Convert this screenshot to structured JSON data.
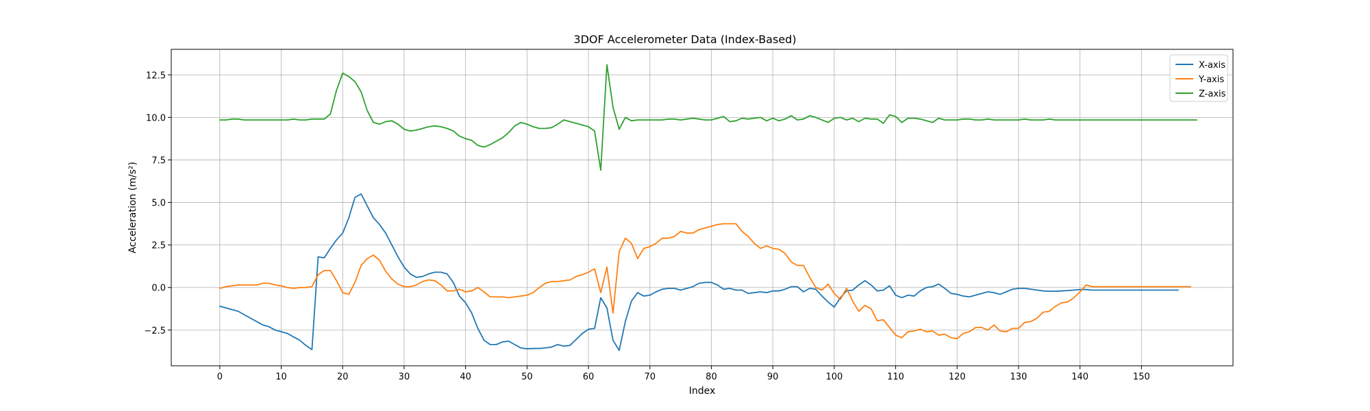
{
  "chart_data": {
    "type": "line",
    "title": "3DOF Accelerometer Data (Index-Based)",
    "xlabel": "Index",
    "ylabel": "Acceleration (m/s²)",
    "xlim": [
      -7.9,
      164.9
    ],
    "ylim": [
      -4.6,
      14.0
    ],
    "xticks": [
      0,
      10,
      20,
      30,
      40,
      50,
      60,
      70,
      80,
      90,
      100,
      110,
      120,
      130,
      140,
      150
    ],
    "yticks": [
      -2.5,
      0.0,
      2.5,
      5.0,
      7.5,
      10.0,
      12.5
    ],
    "ytick_labels": [
      "−2.5",
      "0.0",
      "2.5",
      "5.0",
      "7.5",
      "10.0",
      "12.5"
    ],
    "grid": true,
    "legend_position": "top-right",
    "series": [
      {
        "name": "X-axis",
        "color": "#1f77b4",
        "values": [
          -1.1,
          -1.2,
          -1.3,
          -1.4,
          -1.6,
          -1.8,
          -2.0,
          -2.2,
          -2.3,
          -2.5,
          -2.6,
          -2.7,
          -2.9,
          -3.1,
          -3.4,
          -3.65,
          1.8,
          1.75,
          2.3,
          2.8,
          3.2,
          4.1,
          5.3,
          5.5,
          4.8,
          4.1,
          3.7,
          3.2,
          2.5,
          1.8,
          1.2,
          0.8,
          0.6,
          0.65,
          0.8,
          0.9,
          0.9,
          0.8,
          0.3,
          -0.5,
          -0.9,
          -1.5,
          -2.4,
          -3.1,
          -3.35,
          -3.35,
          -3.2,
          -3.15,
          -3.35,
          -3.55,
          -3.6,
          -3.58,
          -3.58,
          -3.55,
          -3.5,
          -3.35,
          -3.45,
          -3.4,
          -3.05,
          -2.7,
          -2.45,
          -2.4,
          -0.6,
          -1.2,
          -3.1,
          -3.7,
          -2.0,
          -0.8,
          -0.3,
          -0.5,
          -0.45,
          -0.25,
          -0.1,
          -0.05,
          -0.05,
          -0.15,
          -0.05,
          0.05,
          0.25,
          0.3,
          0.3,
          0.15,
          -0.1,
          -0.05,
          -0.15,
          -0.15,
          -0.35,
          -0.3,
          -0.25,
          -0.3,
          -0.2,
          -0.2,
          -0.1,
          0.05,
          0.05,
          -0.25,
          -0.05,
          -0.1,
          -0.5,
          -0.85,
          -1.15,
          -0.6,
          -0.2,
          -0.15,
          0.15,
          0.4,
          0.15,
          -0.2,
          -0.15,
          0.1,
          -0.45,
          -0.6,
          -0.45,
          -0.5,
          -0.2,
          0.0,
          0.05,
          0.2,
          -0.05,
          -0.35,
          -0.4,
          -0.5,
          -0.55,
          -0.45,
          -0.35,
          -0.25,
          -0.3,
          -0.4,
          -0.25,
          -0.1,
          -0.05,
          -0.05,
          -0.1,
          -0.15,
          -0.2,
          -0.22,
          -0.22,
          -0.2,
          -0.18,
          -0.15,
          -0.12,
          -0.12,
          -0.15,
          -0.15,
          -0.15,
          -0.15,
          -0.15,
          -0.15,
          -0.15,
          -0.15,
          -0.15,
          -0.15,
          -0.15,
          -0.15,
          -0.15,
          -0.15,
          -0.15
        ]
      },
      {
        "name": "Y-axis",
        "color": "#ff7f0e",
        "values": [
          -0.05,
          0.05,
          0.1,
          0.15,
          0.15,
          0.15,
          0.15,
          0.25,
          0.25,
          0.15,
          0.1,
          0.0,
          -0.05,
          0.0,
          0.0,
          0.05,
          0.75,
          1.0,
          1.0,
          0.4,
          -0.3,
          -0.4,
          0.3,
          1.3,
          1.7,
          1.9,
          1.6,
          0.95,
          0.5,
          0.2,
          0.05,
          0.05,
          0.15,
          0.35,
          0.45,
          0.4,
          0.15,
          -0.2,
          -0.2,
          -0.1,
          -0.25,
          -0.2,
          0.0,
          -0.25,
          -0.55,
          -0.55,
          -0.55,
          -0.6,
          -0.55,
          -0.5,
          -0.45,
          -0.3,
          0.0,
          0.25,
          0.35,
          0.35,
          0.4,
          0.45,
          0.65,
          0.75,
          0.9,
          1.1,
          -0.3,
          1.2,
          -1.5,
          2.1,
          2.9,
          2.6,
          1.7,
          2.3,
          2.4,
          2.6,
          2.9,
          2.9,
          3.0,
          3.3,
          3.2,
          3.2,
          3.4,
          3.5,
          3.6,
          3.7,
          3.75,
          3.75,
          3.75,
          3.3,
          3.0,
          2.6,
          2.3,
          2.45,
          2.3,
          2.25,
          2.0,
          1.5,
          1.3,
          1.3,
          0.6,
          0.0,
          -0.15,
          0.2,
          -0.35,
          -0.7,
          -0.05,
          -0.8,
          -1.4,
          -1.05,
          -1.25,
          -1.95,
          -1.9,
          -2.35,
          -2.8,
          -2.95,
          -2.6,
          -2.55,
          -2.45,
          -2.6,
          -2.55,
          -2.8,
          -2.75,
          -2.95,
          -3.0,
          -2.7,
          -2.6,
          -2.35,
          -2.35,
          -2.5,
          -2.2,
          -2.55,
          -2.6,
          -2.4,
          -2.4,
          -2.05,
          -2.0,
          -1.8,
          -1.45,
          -1.4,
          -1.1,
          -0.9,
          -0.85,
          -0.6,
          -0.25,
          0.15,
          0.05,
          0.05,
          0.05,
          0.05,
          0.05,
          0.05,
          0.05,
          0.05,
          0.05,
          0.05,
          0.05,
          0.05,
          0.05,
          0.05,
          0.05,
          0.05,
          0.05
        ]
      },
      {
        "name": "Z-axis",
        "color": "#2ca02c",
        "values": [
          9.85,
          9.85,
          9.9,
          9.9,
          9.85,
          9.85,
          9.85,
          9.85,
          9.85,
          9.85,
          9.85,
          9.85,
          9.9,
          9.85,
          9.85,
          9.9,
          9.9,
          9.9,
          10.2,
          11.6,
          12.6,
          12.4,
          12.1,
          11.5,
          10.4,
          9.7,
          9.6,
          9.75,
          9.8,
          9.6,
          9.3,
          9.2,
          9.25,
          9.35,
          9.45,
          9.5,
          9.45,
          9.35,
          9.2,
          8.9,
          8.75,
          8.65,
          8.35,
          8.25,
          8.4,
          8.6,
          8.8,
          9.1,
          9.5,
          9.7,
          9.6,
          9.45,
          9.35,
          9.35,
          9.4,
          9.6,
          9.85,
          9.75,
          9.65,
          9.55,
          9.45,
          9.2,
          6.9,
          13.1,
          10.6,
          9.3,
          10.0,
          9.8,
          9.85,
          9.85,
          9.85,
          9.85,
          9.85,
          9.9,
          9.9,
          9.85,
          9.9,
          9.95,
          9.9,
          9.85,
          9.85,
          9.95,
          10.05,
          9.75,
          9.8,
          9.95,
          9.9,
          9.95,
          10.0,
          9.8,
          9.95,
          9.8,
          9.9,
          10.1,
          9.85,
          9.9,
          10.1,
          10.0,
          9.85,
          9.7,
          9.95,
          10.0,
          9.85,
          9.95,
          9.75,
          9.95,
          9.9,
          9.9,
          9.65,
          10.15,
          10.05,
          9.7,
          9.95,
          9.95,
          9.9,
          9.8,
          9.7,
          9.95,
          9.85,
          9.85,
          9.85,
          9.9,
          9.9,
          9.85,
          9.85,
          9.9,
          9.85,
          9.85,
          9.85,
          9.85,
          9.85,
          9.9,
          9.85,
          9.85,
          9.85,
          9.9,
          9.85,
          9.85,
          9.85,
          9.85,
          9.85,
          9.85,
          9.85,
          9.85,
          9.85,
          9.85,
          9.85,
          9.85,
          9.85,
          9.85,
          9.85,
          9.85,
          9.85,
          9.85,
          9.85,
          9.85,
          9.85,
          9.85,
          9.85,
          9.85
        ]
      }
    ]
  }
}
